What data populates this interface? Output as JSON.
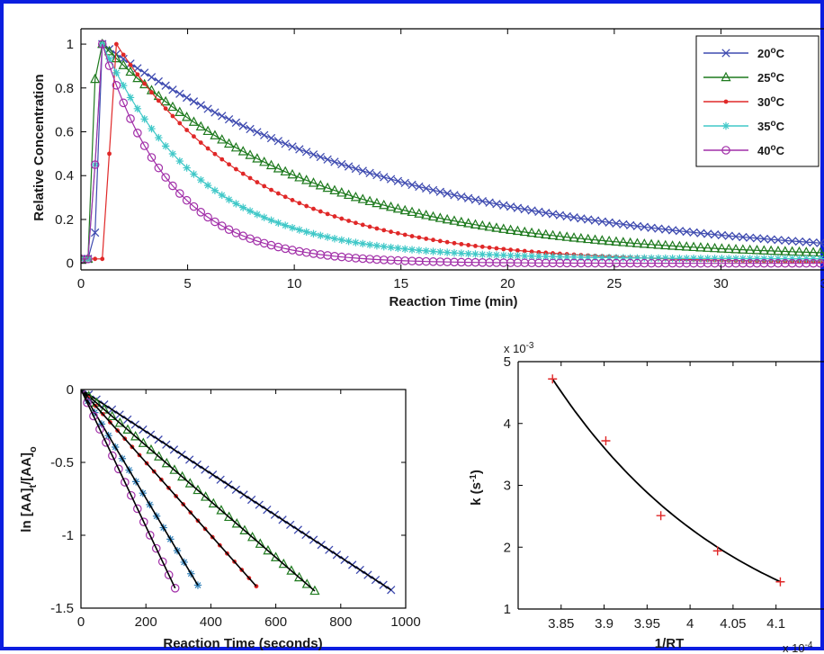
{
  "chart_data": [
    {
      "type": "line",
      "title": "",
      "xlabel": "Reaction Time (min)",
      "ylabel": "Relative Concentration",
      "xlim": [
        0,
        35
      ],
      "ylim": [
        -0.03,
        1.07
      ],
      "x_ticks": [
        0,
        5,
        10,
        15,
        20,
        25,
        30,
        35
      ],
      "x_tick_labels": [
        "0",
        "5",
        "10",
        "15",
        "20",
        "25",
        "30",
        "35"
      ],
      "y_ticks": [
        0,
        0.2,
        0.4,
        0.6,
        0.8,
        1
      ],
      "y_tick_labels": [
        "0",
        "0.2",
        "0.4",
        "0.6",
        "0.8",
        "1"
      ],
      "legend_position": "top-right",
      "sample_step_min": 0.33,
      "series": [
        {
          "name": "20°C",
          "label_main": "20",
          "label_sup": "o",
          "label_tail": "C",
          "color": "#3f4bb0",
          "marker": "x",
          "rise_x": [
            0,
            0.33,
            0.66,
            1.0
          ],
          "rise_y": [
            0.02,
            0.02,
            0.14,
            1.0
          ],
          "peak_time": 1.0,
          "half_life_min": 9.8,
          "baseline": 0.0
        },
        {
          "name": "25°C",
          "label_main": "25",
          "label_sup": "o",
          "label_tail": "C",
          "color": "#1e7a1e",
          "marker": "triangle",
          "rise_x": [
            0,
            0.33,
            0.66,
            1.0
          ],
          "rise_y": [
            0.02,
            0.02,
            0.84,
            1.0
          ],
          "peak_time": 1.0,
          "half_life_min": 6.6,
          "baseline": 0.02
        },
        {
          "name": "30°C",
          "label_main": "30",
          "label_sup": "o",
          "label_tail": "C",
          "color": "#e02828",
          "marker": "dot",
          "rise_x": [
            0,
            0.33,
            0.66,
            1.0,
            1.33,
            1.66
          ],
          "rise_y": [
            0.02,
            0.02,
            0.02,
            0.02,
            0.5,
            1.0
          ],
          "peak_time": 1.66,
          "half_life_min": 4.6,
          "baseline": 0.0
        },
        {
          "name": "35°C",
          "label_main": "35",
          "label_sup": "o",
          "label_tail": "C",
          "color": "#40c8c8",
          "marker": "star",
          "rise_x": [
            0,
            0.33,
            0.66,
            1.0
          ],
          "rise_y": [
            0.02,
            0.02,
            0.45,
            1.0
          ],
          "peak_time": 1.0,
          "half_life_min": 3.2,
          "baseline": 0.02
        },
        {
          "name": "40°C",
          "label_main": "40",
          "label_sup": "o",
          "label_tail": "C",
          "color": "#a12ea8",
          "marker": "circle",
          "rise_x": [
            0,
            0.33,
            0.66,
            1.0
          ],
          "rise_y": [
            0.02,
            0.02,
            0.45,
            1.0
          ],
          "peak_time": 1.0,
          "half_life_min": 2.2,
          "baseline": 0.0
        }
      ]
    },
    {
      "type": "scatter",
      "title": "",
      "xlabel": "Reaction Time (seconds)",
      "ylabel_parts": [
        "ln [AA]",
        "t",
        "/[AA]",
        "o"
      ],
      "xlim": [
        0,
        1000
      ],
      "ylim": [
        -1.5,
        0
      ],
      "x_ticks": [
        0,
        200,
        400,
        600,
        800,
        1000
      ],
      "x_tick_labels": [
        "0",
        "200",
        "400",
        "600",
        "800",
        "1000"
      ],
      "y_ticks": [
        0,
        -0.5,
        -1,
        -1.5
      ],
      "y_tick_labels": [
        "0",
        "-0.5",
        "-1",
        "-1.5"
      ],
      "fit_color": "#000000",
      "series": [
        {
          "name": "",
          "color": "#3f4bb0",
          "marker": "x",
          "slope": -0.00144,
          "t_end": 955,
          "n_points": 40
        },
        {
          "name": "",
          "color": "#1e7a1e",
          "marker": "triangle",
          "slope": -0.00192,
          "t_end": 720,
          "n_points": 30
        },
        {
          "name": "",
          "color": "#e02828",
          "marker": "dot",
          "slope": -0.0025,
          "t_end": 540,
          "n_points": 24
        },
        {
          "name": "",
          "color": "#2f7fb8",
          "marker": "star",
          "slope": -0.00373,
          "t_end": 360,
          "n_points": 17
        },
        {
          "name": "",
          "color": "#a12ea8",
          "marker": "circle",
          "slope": -0.0047,
          "t_end": 290,
          "n_points": 15
        }
      ]
    },
    {
      "type": "scatter",
      "title": "",
      "xlabel": "1/RT",
      "ylabel": "k (s",
      "ylabel_sup": "-1",
      "ylabel_tail": ")",
      "xlim": [
        3.8,
        4.16
      ],
      "ylim": [
        1,
        5
      ],
      "x_ticks": [
        3.85,
        3.9,
        3.95,
        4,
        4.05,
        4.1
      ],
      "x_tick_labels": [
        "3.85",
        "3.9",
        "3.95",
        "4",
        "4.05",
        "4.1"
      ],
      "y_ticks": [
        1,
        2,
        3,
        4,
        5
      ],
      "y_tick_labels": [
        "1",
        "2",
        "3",
        "4",
        "5"
      ],
      "y_multiplier_base": "x 10",
      "y_multiplier_exp": "-3",
      "x_multiplier_base": "x 10",
      "x_multiplier_exp": "-4",
      "marker": "plus",
      "marker_color": "#e02828",
      "fit_color": "#000000",
      "points": [
        {
          "x": 3.84,
          "y": 4.72
        },
        {
          "x": 3.902,
          "y": 3.72
        },
        {
          "x": 3.966,
          "y": 2.51
        },
        {
          "x": 4.032,
          "y": 1.94
        },
        {
          "x": 4.105,
          "y": 1.44
        }
      ],
      "fit_curve": {
        "x_start": 3.84,
        "x_end": 4.105,
        "A": 4.72,
        "rate": 4.477
      }
    }
  ]
}
